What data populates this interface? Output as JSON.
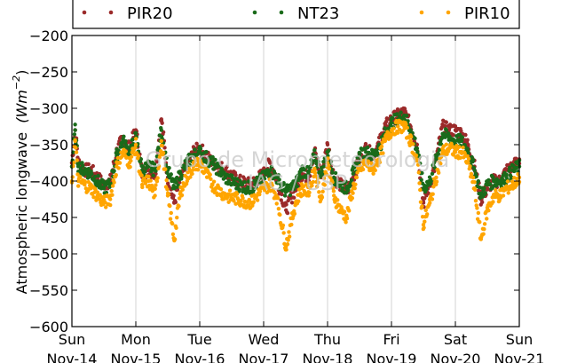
{
  "chart_data": {
    "type": "scatter",
    "ylabel": "Atmospheric longwave (Wm⁻²)",
    "ylabel_text": "Atmospheric longwave",
    "ylabel_unit": "(Wm",
    "ylabel_exp": "−2",
    "ylim": [
      -600,
      -200
    ],
    "yticks": [
      -200,
      -250,
      -300,
      -350,
      -400,
      -450,
      -500,
      -550,
      -600
    ],
    "ytick_labels": [
      "−200",
      "−250",
      "−300",
      "−350",
      "−400",
      "−450",
      "−500",
      "−550",
      "−600"
    ],
    "xlim": [
      0,
      7
    ],
    "xticks": [
      {
        "day": "Sun",
        "date": "Nov-14"
      },
      {
        "day": "Mon",
        "date": "Nov-15"
      },
      {
        "day": "Tue",
        "date": "Nov-16"
      },
      {
        "day": "Wed",
        "date": "Nov-17"
      },
      {
        "day": "Thu",
        "date": "Nov-18"
      },
      {
        "day": "Fri",
        "date": "Nov-19"
      },
      {
        "day": "Sat",
        "date": "Nov-20"
      },
      {
        "day": "Sun",
        "date": "Nov-21"
      }
    ],
    "grid": "vertical",
    "legend_position": "top",
    "watermark": [
      "Grupo de Micrometeorologia",
      "IAG / USP"
    ],
    "series": [
      {
        "name": "PIR20",
        "color": "#9b2a2a",
        "x": [
          0,
          0.05,
          0.1,
          0.2,
          0.3,
          0.4,
          0.5,
          0.6,
          0.7,
          0.8,
          0.9,
          1.0,
          1.1,
          1.2,
          1.3,
          1.4,
          1.5,
          1.6,
          1.7,
          1.8,
          1.9,
          2.0,
          2.2,
          2.4,
          2.6,
          2.8,
          3.0,
          3.1,
          3.2,
          3.35,
          3.5,
          3.6,
          3.7,
          3.8,
          3.9,
          4.0,
          4.1,
          4.2,
          4.3,
          4.4,
          4.5,
          4.6,
          4.7,
          4.8,
          4.9,
          5.0,
          5.1,
          5.2,
          5.3,
          5.4,
          5.5,
          5.6,
          5.7,
          5.8,
          5.9,
          6.0,
          6.1,
          6.2,
          6.3,
          6.4,
          6.5,
          6.6,
          6.7,
          6.8,
          6.9,
          7.0
        ],
        "y": [
          -375,
          -330,
          -375,
          -385,
          -385,
          -395,
          -405,
          -400,
          -360,
          -340,
          -355,
          -330,
          -390,
          -385,
          -390,
          -315,
          -395,
          -430,
          -395,
          -380,
          -360,
          -355,
          -375,
          -385,
          -400,
          -405,
          -390,
          -375,
          -395,
          -440,
          -410,
          -390,
          -395,
          -360,
          -395,
          -350,
          -395,
          -405,
          -415,
          -395,
          -370,
          -355,
          -365,
          -350,
          -325,
          -315,
          -310,
          -305,
          -325,
          -350,
          -430,
          -405,
          -370,
          -325,
          -330,
          -330,
          -335,
          -350,
          -380,
          -425,
          -410,
          -400,
          -400,
          -385,
          -380,
          -370
        ]
      },
      {
        "name": "NT23",
        "color": "#1a6b1a",
        "x": [
          0,
          0.05,
          0.1,
          0.2,
          0.3,
          0.4,
          0.5,
          0.6,
          0.7,
          0.8,
          0.9,
          1.0,
          1.1,
          1.2,
          1.3,
          1.4,
          1.5,
          1.6,
          1.7,
          1.8,
          1.9,
          2.0,
          2.2,
          2.4,
          2.6,
          2.8,
          3.0,
          3.1,
          3.2,
          3.35,
          3.5,
          3.6,
          3.7,
          3.8,
          3.9,
          4.0,
          4.1,
          4.2,
          4.3,
          4.4,
          4.5,
          4.6,
          4.7,
          4.8,
          4.9,
          5.0,
          5.1,
          5.2,
          5.3,
          5.4,
          5.5,
          5.6,
          5.7,
          5.8,
          5.9,
          6.0,
          6.1,
          6.2,
          6.3,
          6.4,
          6.5,
          6.6,
          6.7,
          6.8,
          6.9,
          7.0
        ],
        "y": [
          -380,
          -330,
          -380,
          -385,
          -390,
          -400,
          -410,
          -405,
          -365,
          -345,
          -360,
          -340,
          -385,
          -380,
          -385,
          -330,
          -385,
          -410,
          -390,
          -375,
          -365,
          -360,
          -375,
          -395,
          -405,
          -410,
          -395,
          -385,
          -395,
          -415,
          -405,
          -385,
          -390,
          -365,
          -390,
          -360,
          -395,
          -405,
          -410,
          -390,
          -365,
          -360,
          -365,
          -355,
          -335,
          -320,
          -315,
          -310,
          -330,
          -355,
          -410,
          -400,
          -370,
          -335,
          -340,
          -345,
          -345,
          -360,
          -385,
          -420,
          -405,
          -400,
          -400,
          -395,
          -385,
          -380
        ]
      },
      {
        "name": "PIR10",
        "color": "#ffa500",
        "x": [
          0,
          0.05,
          0.1,
          0.2,
          0.3,
          0.4,
          0.5,
          0.6,
          0.7,
          0.8,
          0.9,
          1.0,
          1.1,
          1.2,
          1.3,
          1.4,
          1.5,
          1.6,
          1.7,
          1.8,
          1.9,
          2.0,
          2.2,
          2.4,
          2.6,
          2.8,
          3.0,
          3.1,
          3.2,
          3.35,
          3.5,
          3.6,
          3.7,
          3.8,
          3.9,
          4.0,
          4.1,
          4.2,
          4.3,
          4.4,
          4.5,
          4.6,
          4.7,
          4.8,
          4.9,
          5.0,
          5.1,
          5.2,
          5.3,
          5.4,
          5.5,
          5.6,
          5.7,
          5.8,
          5.9,
          6.0,
          6.1,
          6.2,
          6.3,
          6.4,
          6.5,
          6.6,
          6.7,
          6.8,
          6.9,
          7.0
        ],
        "y": [
          -400,
          -345,
          -400,
          -405,
          -410,
          -420,
          -430,
          -425,
          -380,
          -360,
          -375,
          -350,
          -405,
          -400,
          -420,
          -345,
          -420,
          -480,
          -415,
          -395,
          -380,
          -375,
          -405,
          -420,
          -425,
          -430,
          -410,
          -405,
          -420,
          -490,
          -430,
          -410,
          -415,
          -385,
          -425,
          -375,
          -420,
          -440,
          -450,
          -410,
          -385,
          -375,
          -385,
          -370,
          -345,
          -330,
          -325,
          -325,
          -345,
          -370,
          -460,
          -430,
          -395,
          -360,
          -355,
          -360,
          -360,
          -375,
          -410,
          -480,
          -440,
          -420,
          -420,
          -410,
          -405,
          -395
        ]
      }
    ]
  }
}
